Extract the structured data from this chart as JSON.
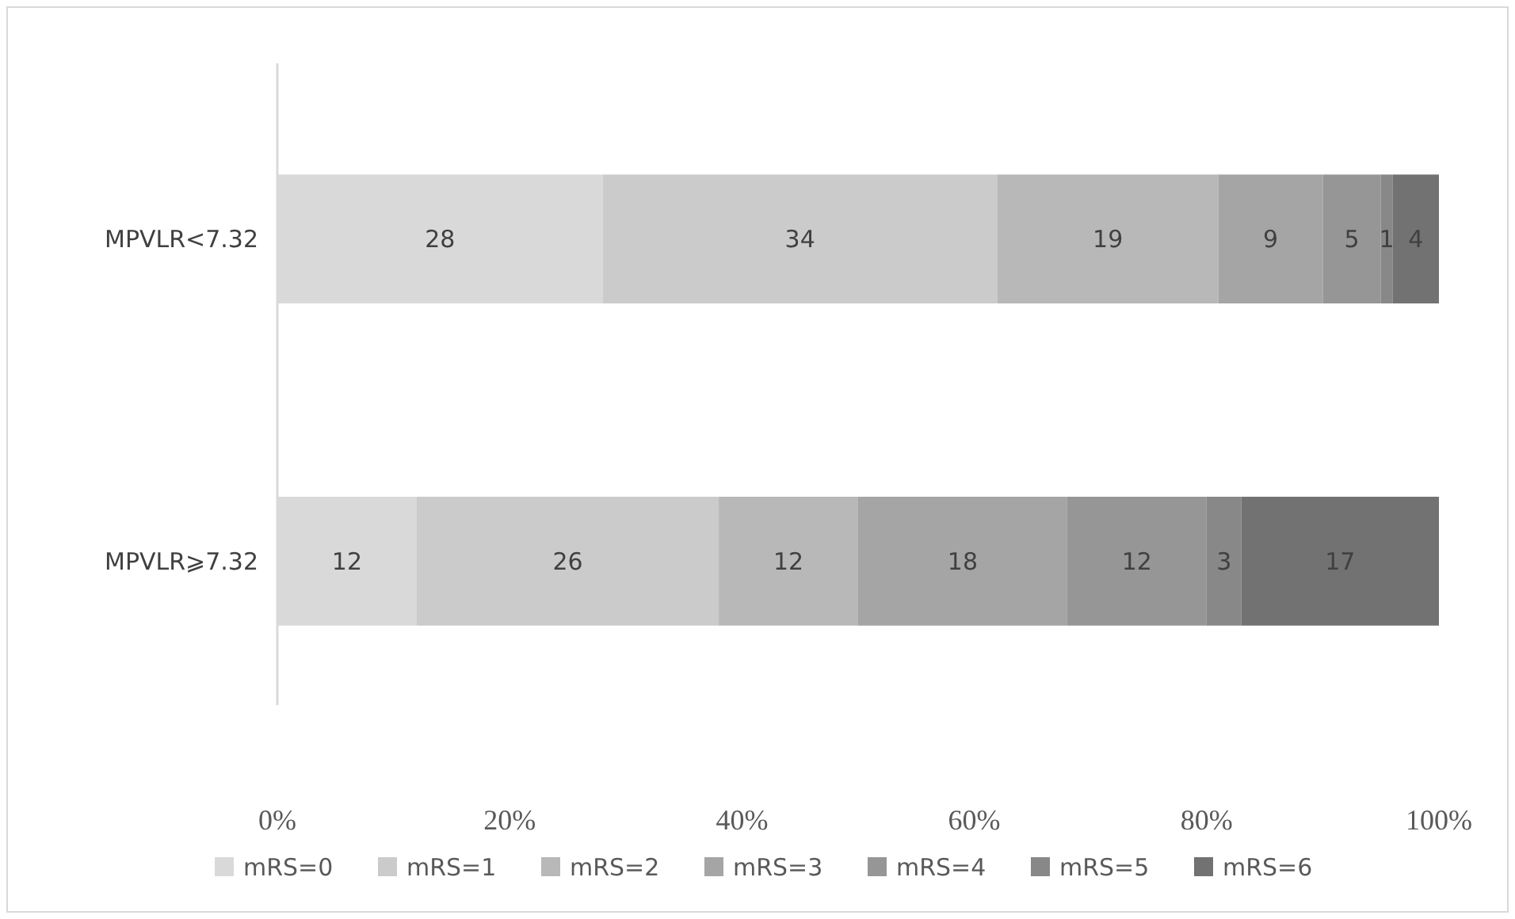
{
  "chart_data": {
    "type": "bar",
    "orientation": "horizontal",
    "stacked": true,
    "categories": [
      "MPVLR<7.32",
      "MPVLR⩾7.32"
    ],
    "series": [
      {
        "name": "mRS=0",
        "color": "#d9d9d9",
        "values": [
          28,
          12
        ]
      },
      {
        "name": "mRS=1",
        "color": "#cbcbcb",
        "values": [
          34,
          26
        ]
      },
      {
        "name": "mRS=2",
        "color": "#b8b8b8",
        "values": [
          19,
          12
        ]
      },
      {
        "name": "mRS=3",
        "color": "#a5a5a5",
        "values": [
          9,
          18
        ]
      },
      {
        "name": "mRS=4",
        "color": "#969696",
        "values": [
          5,
          12
        ]
      },
      {
        "name": "mRS=5",
        "color": "#888888",
        "values": [
          1,
          3
        ]
      },
      {
        "name": "mRS=6",
        "color": "#727272",
        "values": [
          4,
          17
        ]
      }
    ],
    "xlim": [
      0,
      100
    ],
    "xticks": [
      {
        "value": 0,
        "label": "0%"
      },
      {
        "value": 20,
        "label": "20%"
      },
      {
        "value": 40,
        "label": "40%"
      },
      {
        "value": 60,
        "label": "60%"
      },
      {
        "value": 80,
        "label": "80%"
      },
      {
        "value": 100,
        "label": "100%"
      }
    ],
    "data_labels": true,
    "legend": "bottom",
    "grid": false
  }
}
